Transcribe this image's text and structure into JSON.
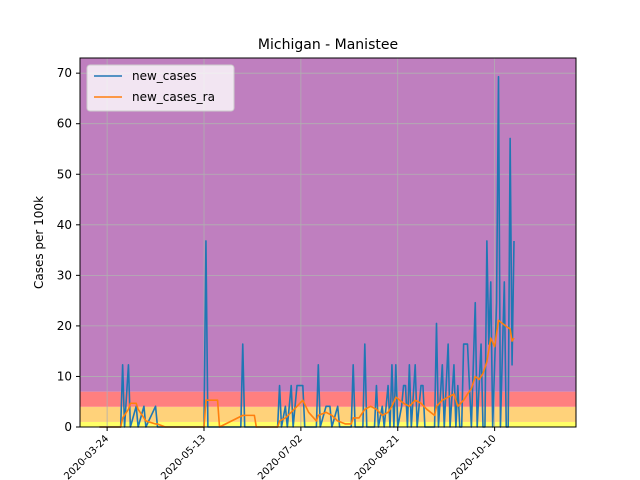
{
  "chart_data": {
    "type": "line",
    "title": "Michigan - Manistee",
    "xlabel": "",
    "ylabel": "Cases per 100k",
    "ylim": [
      0,
      73
    ],
    "xlim": [
      "2020-03-10",
      "2020-11-21"
    ],
    "grid": true,
    "legend_position": "top-left",
    "x_ticks": [
      "2020-03-24",
      "2020-05-13",
      "2020-07-02",
      "2020-08-21",
      "2020-10-10"
    ],
    "y_ticks": [
      0,
      10,
      20,
      30,
      40,
      50,
      60,
      70
    ],
    "background_bands": [
      {
        "from": 0,
        "to": 1,
        "color": "#ffff66"
      },
      {
        "from": 1,
        "to": 4,
        "color": "#ffd27a"
      },
      {
        "from": 4,
        "to": 7,
        "color": "#ff7f7f"
      },
      {
        "from": 7,
        "to": 73,
        "color": "#bf7fbf"
      }
    ],
    "series": [
      {
        "name": "new_cases",
        "color": "#1f77b4",
        "points": [
          [
            "2020-03-20",
            0
          ],
          [
            "2020-03-31",
            0
          ],
          [
            "2020-04-01",
            12.3
          ],
          [
            "2020-04-02",
            0
          ],
          [
            "2020-04-04",
            12.3
          ],
          [
            "2020-04-05",
            0
          ],
          [
            "2020-04-08",
            4.1
          ],
          [
            "2020-04-09",
            0
          ],
          [
            "2020-04-12",
            4.1
          ],
          [
            "2020-04-13",
            0
          ],
          [
            "2020-04-18",
            4.1
          ],
          [
            "2020-04-19",
            0
          ],
          [
            "2020-05-13",
            0
          ],
          [
            "2020-05-14",
            36.8
          ],
          [
            "2020-05-15",
            0
          ],
          [
            "2020-06-01",
            0
          ],
          [
            "2020-06-02",
            16.4
          ],
          [
            "2020-06-03",
            0
          ],
          [
            "2020-06-20",
            0
          ],
          [
            "2020-06-21",
            8.2
          ],
          [
            "2020-06-22",
            0
          ],
          [
            "2020-06-24",
            4.1
          ],
          [
            "2020-06-25",
            0
          ],
          [
            "2020-06-27",
            8.2
          ],
          [
            "2020-06-28",
            0
          ],
          [
            "2020-06-30",
            8.2
          ],
          [
            "2020-07-03",
            8.2
          ],
          [
            "2020-07-04",
            0
          ],
          [
            "2020-07-10",
            0
          ],
          [
            "2020-07-11",
            12.3
          ],
          [
            "2020-07-12",
            0
          ],
          [
            "2020-07-15",
            4.1
          ],
          [
            "2020-07-17",
            4.1
          ],
          [
            "2020-07-18",
            0
          ],
          [
            "2020-07-21",
            4.1
          ],
          [
            "2020-07-22",
            0
          ],
          [
            "2020-07-28",
            0
          ],
          [
            "2020-07-29",
            12.3
          ],
          [
            "2020-07-30",
            0
          ],
          [
            "2020-08-03",
            0
          ],
          [
            "2020-08-04",
            16.4
          ],
          [
            "2020-08-05",
            0
          ],
          [
            "2020-08-09",
            0
          ],
          [
            "2020-08-10",
            8.2
          ],
          [
            "2020-08-11",
            0
          ],
          [
            "2020-08-13",
            4.1
          ],
          [
            "2020-08-14",
            0
          ],
          [
            "2020-08-16",
            8.2
          ],
          [
            "2020-08-17",
            0
          ],
          [
            "2020-08-18",
            12.3
          ],
          [
            "2020-08-19",
            0
          ],
          [
            "2020-08-20",
            12.3
          ],
          [
            "2020-08-21",
            0
          ],
          [
            "2020-08-23",
            4.1
          ],
          [
            "2020-08-24",
            8.2
          ],
          [
            "2020-08-25",
            8.2
          ],
          [
            "2020-08-26",
            0
          ],
          [
            "2020-08-27",
            12.3
          ],
          [
            "2020-08-28",
            0
          ],
          [
            "2020-08-30",
            12.3
          ],
          [
            "2020-08-31",
            0
          ],
          [
            "2020-09-02",
            8.2
          ],
          [
            "2020-09-03",
            8.2
          ],
          [
            "2020-09-04",
            0
          ],
          [
            "2020-09-09",
            0
          ],
          [
            "2020-09-10",
            20.5
          ],
          [
            "2020-09-11",
            0
          ],
          [
            "2020-09-13",
            12.3
          ],
          [
            "2020-09-14",
            0
          ],
          [
            "2020-09-16",
            16.4
          ],
          [
            "2020-09-17",
            0
          ],
          [
            "2020-09-19",
            12.3
          ],
          [
            "2020-09-20",
            0
          ],
          [
            "2020-09-21",
            8.2
          ],
          [
            "2020-09-22",
            0
          ],
          [
            "2020-09-23",
            0
          ],
          [
            "2020-09-24",
            16.4
          ],
          [
            "2020-09-26",
            16.4
          ],
          [
            "2020-09-27",
            8.2
          ],
          [
            "2020-09-28",
            0
          ],
          [
            "2020-09-30",
            24.6
          ],
          [
            "2020-10-01",
            0
          ],
          [
            "2020-10-03",
            16.4
          ],
          [
            "2020-10-04",
            0
          ],
          [
            "2020-10-05",
            0
          ],
          [
            "2020-10-06",
            36.8
          ],
          [
            "2020-10-07",
            16.4
          ],
          [
            "2020-10-08",
            28.7
          ],
          [
            "2020-10-09",
            0
          ],
          [
            "2020-10-10",
            12.3
          ],
          [
            "2020-10-11",
            24.6
          ],
          [
            "2020-10-12",
            69.3
          ],
          [
            "2020-10-13",
            0
          ],
          [
            "2020-10-15",
            28.7
          ],
          [
            "2020-10-16",
            0
          ],
          [
            "2020-10-17",
            0
          ],
          [
            "2020-10-18",
            57.1
          ],
          [
            "2020-10-19",
            12.3
          ],
          [
            "2020-10-20",
            36.8
          ]
        ]
      },
      {
        "name": "new_cases_ra",
        "color": "#ff7f0e",
        "points": [
          [
            "2020-03-20",
            0
          ],
          [
            "2020-03-31",
            0
          ],
          [
            "2020-04-01",
            1.8
          ],
          [
            "2020-04-04",
            3.5
          ],
          [
            "2020-04-05",
            4.7
          ],
          [
            "2020-04-08",
            4.7
          ],
          [
            "2020-04-09",
            3.5
          ],
          [
            "2020-04-12",
            1.8
          ],
          [
            "2020-04-13",
            1.2
          ],
          [
            "2020-04-18",
            0.6
          ],
          [
            "2020-04-19",
            0.6
          ],
          [
            "2020-04-23",
            0
          ],
          [
            "2020-05-13",
            0
          ],
          [
            "2020-05-14",
            5.3
          ],
          [
            "2020-05-20",
            5.3
          ],
          [
            "2020-05-21",
            0
          ],
          [
            "2020-06-02",
            2.3
          ],
          [
            "2020-06-08",
            2.3
          ],
          [
            "2020-06-09",
            0
          ],
          [
            "2020-06-20",
            0
          ],
          [
            "2020-06-21",
            1.2
          ],
          [
            "2020-06-24",
            1.8
          ],
          [
            "2020-06-27",
            2.9
          ],
          [
            "2020-06-30",
            4.1
          ],
          [
            "2020-07-03",
            5.3
          ],
          [
            "2020-07-06",
            2.9
          ],
          [
            "2020-07-10",
            1.2
          ],
          [
            "2020-07-11",
            2.3
          ],
          [
            "2020-07-15",
            2.9
          ],
          [
            "2020-07-18",
            2.3
          ],
          [
            "2020-07-21",
            1.2
          ],
          [
            "2020-07-25",
            0.6
          ],
          [
            "2020-07-28",
            0.6
          ],
          [
            "2020-07-29",
            1.8
          ],
          [
            "2020-08-01",
            1.8
          ],
          [
            "2020-08-04",
            3.5
          ],
          [
            "2020-08-07",
            4.1
          ],
          [
            "2020-08-10",
            3.5
          ],
          [
            "2020-08-13",
            2.3
          ],
          [
            "2020-08-16",
            2.9
          ],
          [
            "2020-08-18",
            4.1
          ],
          [
            "2020-08-20",
            5.9
          ],
          [
            "2020-08-24",
            4.7
          ],
          [
            "2020-08-27",
            4.1
          ],
          [
            "2020-08-30",
            5.3
          ],
          [
            "2020-09-02",
            4.7
          ],
          [
            "2020-09-05",
            3.5
          ],
          [
            "2020-09-09",
            2.3
          ],
          [
            "2020-09-10",
            4.1
          ],
          [
            "2020-09-13",
            5.3
          ],
          [
            "2020-09-16",
            5.9
          ],
          [
            "2020-09-19",
            6.5
          ],
          [
            "2020-09-21",
            4.1
          ],
          [
            "2020-09-24",
            5.3
          ],
          [
            "2020-09-26",
            6.5
          ],
          [
            "2020-09-28",
            7.6
          ],
          [
            "2020-09-30",
            10.0
          ],
          [
            "2020-10-02",
            9.4
          ],
          [
            "2020-10-04",
            10.6
          ],
          [
            "2020-10-06",
            12.9
          ],
          [
            "2020-10-08",
            17.6
          ],
          [
            "2020-10-10",
            15.9
          ],
          [
            "2020-10-12",
            21.1
          ],
          [
            "2020-10-14",
            20.5
          ],
          [
            "2020-10-16",
            19.9
          ],
          [
            "2020-10-18",
            19.4
          ],
          [
            "2020-10-19",
            17.0
          ],
          [
            "2020-10-20",
            17.6
          ]
        ]
      }
    ]
  }
}
